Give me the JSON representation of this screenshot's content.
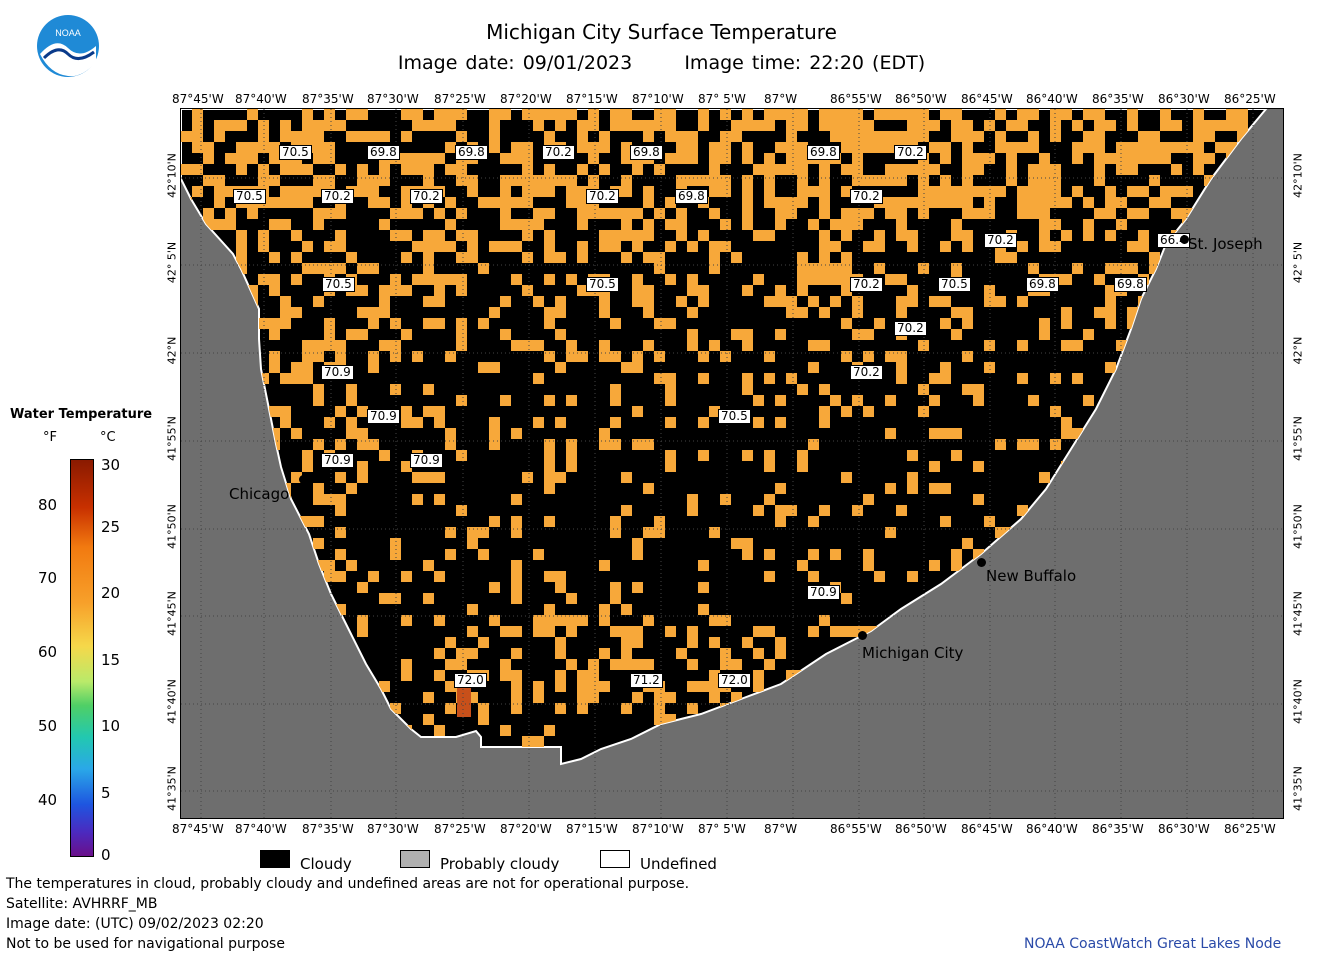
{
  "header": {
    "title": "Michigan City Surface Temperature",
    "image_date": "Image date: 09/01/2023",
    "image_time": "Image time: 22:20 (EDT)",
    "logo_text": "NOAA"
  },
  "lon_labels": [
    "87°45'W",
    "87°40'W",
    "87°35'W",
    "87°30'W",
    "87°25'W",
    "87°20'W",
    "87°15'W",
    "87°10'W",
    "87° 5'W",
    "87°W",
    "86°55'W",
    "86°50'W",
    "86°45'W",
    "86°40'W",
    "86°35'W",
    "86°30'W",
    "86°25'W"
  ],
  "lat_labels": [
    "42°10'N",
    "42° 5'N",
    "42°N",
    "41°55'N",
    "41°50'N",
    "41°45'N",
    "41°40'N",
    "41°35'N"
  ],
  "temperature_labels": [
    "70.5",
    "69.8",
    "69.8",
    "70.2",
    "69.8",
    "69.8",
    "70.2",
    "70.5",
    "70.2",
    "70.2",
    "70.2",
    "69.8",
    "70.2",
    "70.2",
    "66.4",
    "70.5",
    "70.5",
    "70.2",
    "70.5",
    "69.8",
    "69.8",
    "70.2",
    "70.9",
    "70.2",
    "70.9",
    "70.5",
    "70.9",
    "70.9",
    "70.9",
    "72.0",
    "71.2",
    "72.0"
  ],
  "cities": [
    {
      "name": "Chicago"
    },
    {
      "name": "St. Joseph"
    },
    {
      "name": "New Buffalo"
    },
    {
      "name": "Michigan City"
    }
  ],
  "legend": {
    "title": "Water Temperature",
    "unit_f": "°F",
    "unit_c": "°C",
    "f_ticks": [
      "80",
      "70",
      "60",
      "50",
      "40"
    ],
    "c_ticks": [
      "30",
      "25",
      "20",
      "15",
      "10",
      "5",
      "0"
    ]
  },
  "key": {
    "cloudy": "Cloudy",
    "probably_cloudy": "Probably cloudy",
    "undefined": "Undefined"
  },
  "footer": {
    "disclaimer": "The temperatures in cloud, probably cloudy and undefined areas are not for operational purpose.",
    "satellite": "Satellite: AVHRRF_MB",
    "utc_date": "Image date: (UTC) 09/02/2023  02:20",
    "nav_warning": "Not to be used for navigational purpose",
    "credit": "NOAA CoastWatch Great Lakes Node"
  },
  "colors": {
    "land": "#6e6e6e",
    "cloud": "#000000",
    "water_warm": "#f7a83a",
    "water_hot": "#c8501a"
  }
}
